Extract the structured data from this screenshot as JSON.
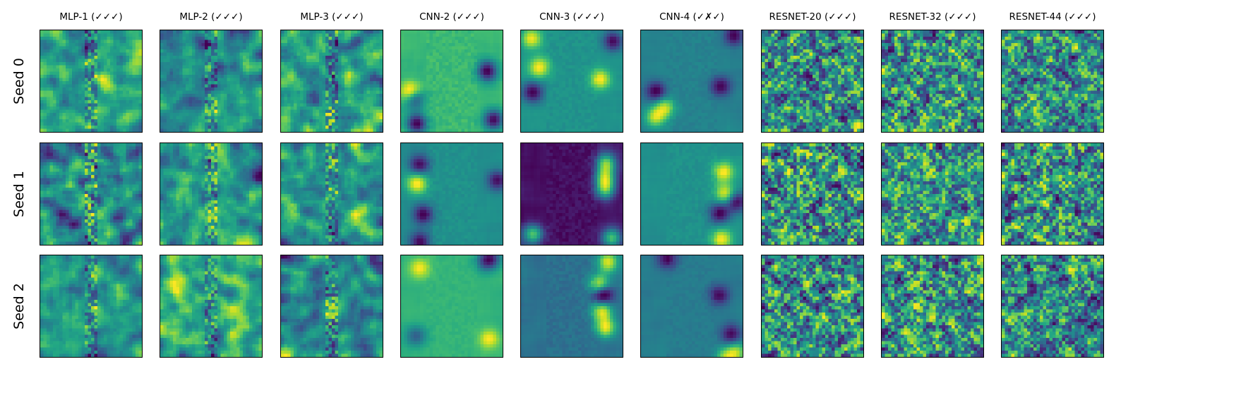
{
  "chart_data": {
    "type": "heatmap",
    "colormap": "viridis",
    "columns": [
      "MLP-1 (✓✓✓)",
      "MLP-2 (✓✓✓)",
      "MLP-3 (✓✓✓)",
      "CNN-2 (✓✓✓)",
      "CNN-3 (✓✓✓)",
      "CNN-4 (✓✗✓)",
      "RESNET-20 (✓✓✓)",
      "RESNET-32 (✓✓✓)",
      "RESNET-44 (✓✓✓)"
    ],
    "rows": [
      "Seed 0",
      "Seed 1",
      "Seed 2"
    ],
    "grid_on": false,
    "colorbar": false
  }
}
